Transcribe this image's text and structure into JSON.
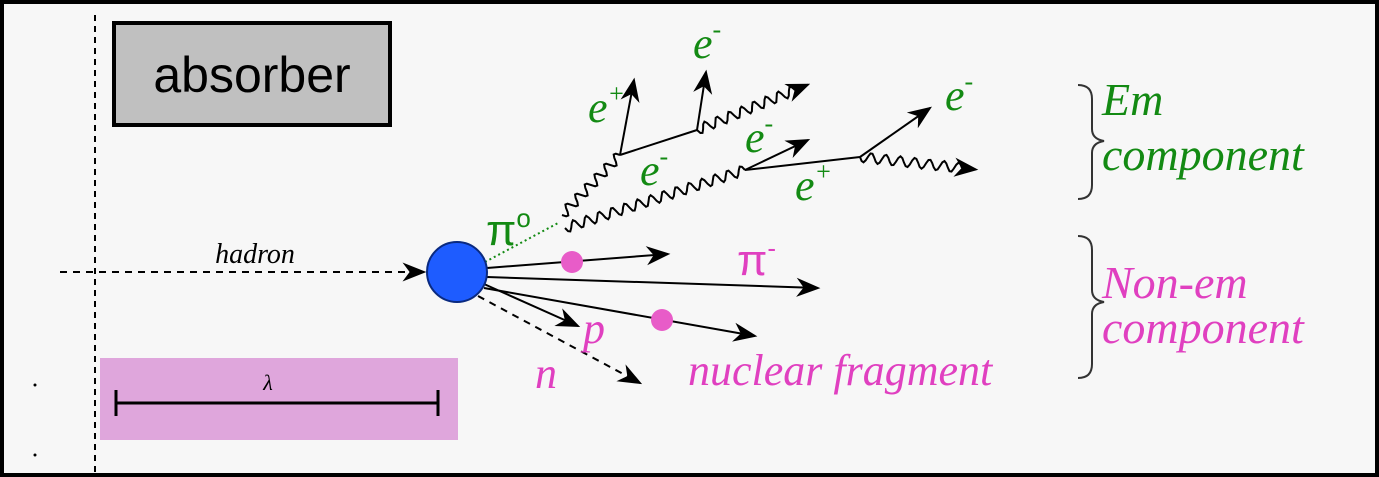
{
  "absorber_label": "absorber",
  "incoming": "hadron",
  "scale": "λ",
  "em": {
    "pion": {
      "base": "π",
      "sup": "o"
    },
    "particles": [
      {
        "base": "e",
        "sup": "+"
      },
      {
        "base": "e",
        "sup": "-"
      },
      {
        "base": "e",
        "sup": "-"
      },
      {
        "base": "e",
        "sup": "-"
      },
      {
        "base": "e",
        "sup": "+"
      },
      {
        "base": "e",
        "sup": "-"
      }
    ],
    "component": [
      "Em",
      "component"
    ]
  },
  "non_em": {
    "pion": {
      "base": "π",
      "sup": "-"
    },
    "proton": "p",
    "neutron": "n",
    "fragment": "nuclear fragment",
    "component": [
      "Non-em",
      "component"
    ]
  }
}
